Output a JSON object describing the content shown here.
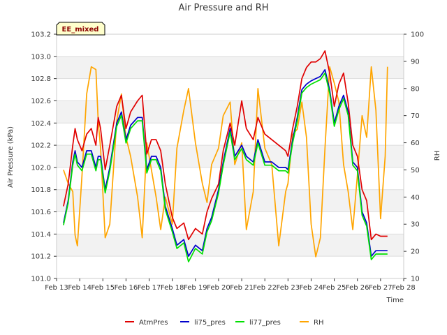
{
  "chart_data": {
    "type": "line",
    "title": "Air Pressure and RH",
    "tag": "EE_mixed",
    "xlabel": "Time",
    "ylabel_left": "Air Pressure (kPa)",
    "ylabel_right": "RH",
    "x_ticks": [
      "Feb 13",
      "Feb 14",
      "Feb 15",
      "Feb 16",
      "Feb 17",
      "Feb 18",
      "Feb 19",
      "Feb 20",
      "Feb 21",
      "Feb 22",
      "Feb 23",
      "Feb 24",
      "Feb 25",
      "Feb 26",
      "Feb 27",
      "Feb 28"
    ],
    "xlim": [
      13,
      28
    ],
    "ylim_left": [
      101.0,
      103.2
    ],
    "ylim_right": [
      10,
      100
    ],
    "y_ticks_left": [
      "101.0",
      "101.2",
      "101.4",
      "101.6",
      "101.8",
      "102.0",
      "102.2",
      "102.4",
      "102.6",
      "102.8",
      "103.0",
      "103.2"
    ],
    "y_ticks_right": [
      "10",
      "20",
      "30",
      "40",
      "50",
      "60",
      "70",
      "80",
      "90",
      "100"
    ],
    "grid": "horizontal bands",
    "legend_position": "bottom",
    "x_days": [
      13.3,
      13.5,
      13.7,
      13.8,
      13.9,
      14.1,
      14.3,
      14.5,
      14.7,
      14.8,
      14.9,
      15.1,
      15.3,
      15.6,
      15.8,
      16.0,
      16.2,
      16.5,
      16.7,
      16.9,
      17.1,
      17.3,
      17.5,
      17.7,
      18.0,
      18.2,
      18.5,
      18.7,
      19.0,
      19.3,
      19.5,
      19.7,
      20.0,
      20.2,
      20.5,
      20.7,
      21.0,
      21.2,
      21.5,
      21.7,
      22.0,
      22.3,
      22.6,
      22.9,
      23.0,
      23.2,
      23.4,
      23.6,
      23.8,
      24.0,
      24.2,
      24.4,
      24.6,
      24.8,
      25.0,
      25.2,
      25.4,
      25.6,
      25.8,
      26.0,
      26.2,
      26.4,
      26.6,
      26.8,
      27.0,
      27.2,
      27.3
    ],
    "series": [
      {
        "name": "AtmPres",
        "axis": "left",
        "color": "#e00000",
        "values": [
          101.65,
          101.85,
          102.2,
          102.35,
          102.25,
          102.15,
          102.3,
          102.35,
          102.2,
          102.45,
          102.35,
          101.98,
          102.2,
          102.55,
          102.65,
          102.35,
          102.5,
          102.6,
          102.65,
          102.12,
          102.25,
          102.25,
          102.15,
          101.85,
          101.55,
          101.45,
          101.5,
          101.35,
          101.45,
          101.4,
          101.6,
          101.72,
          101.85,
          102.15,
          102.4,
          102.2,
          102.6,
          102.35,
          102.25,
          102.45,
          102.3,
          102.25,
          102.2,
          102.15,
          102.1,
          102.35,
          102.55,
          102.8,
          102.9,
          102.95,
          102.95,
          102.98,
          103.05,
          102.85,
          102.55,
          102.75,
          102.85,
          102.58,
          102.2,
          102.1,
          101.8,
          101.7,
          101.35,
          101.4,
          101.38,
          101.38,
          101.38
        ]
      },
      {
        "name": "li75_pres",
        "axis": "left",
        "color": "#0000cc",
        "values": [
          101.5,
          101.7,
          102.05,
          102.15,
          102.05,
          102.0,
          102.15,
          102.15,
          102.0,
          102.1,
          102.1,
          101.8,
          102.0,
          102.4,
          102.5,
          102.25,
          102.38,
          102.45,
          102.45,
          101.98,
          102.1,
          102.1,
          102.0,
          101.65,
          101.45,
          101.3,
          101.35,
          101.2,
          101.3,
          101.25,
          101.45,
          101.55,
          101.8,
          102.05,
          102.35,
          102.1,
          102.2,
          102.1,
          102.05,
          102.25,
          102.05,
          102.05,
          102.0,
          102.0,
          101.98,
          102.25,
          102.45,
          102.7,
          102.75,
          102.78,
          102.8,
          102.82,
          102.88,
          102.7,
          102.4,
          102.55,
          102.65,
          102.5,
          102.05,
          102.0,
          101.6,
          101.5,
          101.2,
          101.25,
          101.25,
          101.25,
          101.25
        ]
      },
      {
        "name": "li77_pres",
        "axis": "left",
        "color": "#00e000",
        "values": [
          101.48,
          101.68,
          102.02,
          102.12,
          102.02,
          101.97,
          102.12,
          102.12,
          101.97,
          102.07,
          102.07,
          101.77,
          101.97,
          102.37,
          102.47,
          102.22,
          102.35,
          102.42,
          102.42,
          101.95,
          102.07,
          102.07,
          101.97,
          101.62,
          101.42,
          101.27,
          101.32,
          101.15,
          101.27,
          101.22,
          101.42,
          101.52,
          101.77,
          102.02,
          102.32,
          102.07,
          102.17,
          102.07,
          102.02,
          102.22,
          102.02,
          102.02,
          101.97,
          101.97,
          101.95,
          102.22,
          102.42,
          102.67,
          102.72,
          102.75,
          102.77,
          102.79,
          102.85,
          102.67,
          102.37,
          102.52,
          102.62,
          102.47,
          102.02,
          101.97,
          101.57,
          101.47,
          101.17,
          101.22,
          101.22,
          101.22,
          101.22
        ]
      },
      {
        "name": "RH",
        "axis": "right",
        "color": "#ffa500",
        "values": [
          50,
          45,
          42,
          26,
          22,
          48,
          78,
          88,
          87,
          68,
          58,
          25,
          30,
          68,
          78,
          62,
          55,
          40,
          25,
          60,
          50,
          40,
          28,
          40,
          30,
          58,
          72,
          80,
          60,
          45,
          38,
          52,
          58,
          70,
          75,
          52,
          60,
          28,
          42,
          80,
          58,
          52,
          22,
          42,
          45,
          63,
          65,
          75,
          62,
          30,
          18,
          25,
          58,
          88,
          82,
          75,
          52,
          42,
          28,
          48,
          70,
          62,
          88,
          72,
          32,
          55,
          88
        ]
      }
    ]
  }
}
